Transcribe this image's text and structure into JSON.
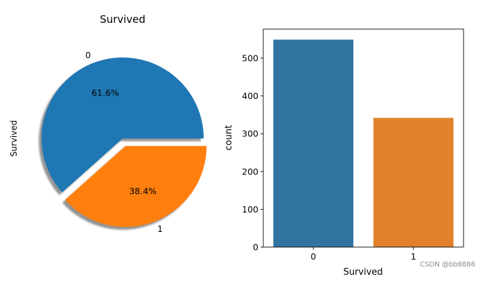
{
  "chart_data": [
    {
      "type": "pie",
      "title": "Survived",
      "ylabel": "Survived",
      "labels": [
        "0",
        "1"
      ],
      "values": [
        61.6,
        38.4
      ],
      "value_labels": [
        "61.6%",
        "38.4%"
      ],
      "colors": [
        "#1f77b4",
        "#ff7f0e"
      ],
      "explode": [
        0,
        0.1
      ],
      "shadow": true
    },
    {
      "type": "bar",
      "title": "",
      "xlabel": "Survived",
      "ylabel": "count",
      "categories": [
        "0",
        "1"
      ],
      "values": [
        549,
        342
      ],
      "colors": [
        "#3274a1",
        "#e1812c"
      ],
      "ylim": [
        0,
        577
      ],
      "yticks": [
        0,
        100,
        200,
        300,
        400,
        500
      ],
      "grid": false
    }
  ],
  "watermark": "CSDN @bb8886"
}
